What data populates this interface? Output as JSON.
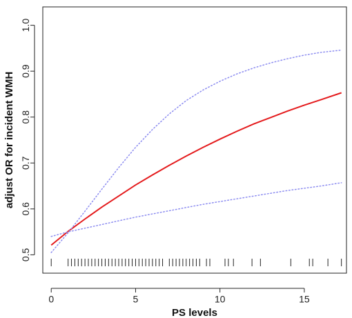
{
  "chart_data": {
    "type": "line",
    "xlabel": "PS levels",
    "ylabel": "adjust OR for incident WMH",
    "xlim": [
      -0.5,
      17.5
    ],
    "ylim": [
      0.46,
      1.04
    ],
    "x_ticks": [
      0,
      5,
      10,
      15
    ],
    "y_ticks": [
      0.5,
      0.6,
      0.7,
      0.8,
      0.9,
      1.0
    ],
    "x_tick_labels": [
      "0",
      "5",
      "10",
      "15"
    ],
    "y_tick_labels": [
      "0.5",
      "0.6",
      "0.7",
      "0.8",
      "0.9",
      "1.0"
    ],
    "grid": false,
    "series": [
      {
        "role": "estimate",
        "color": "#e41a1c",
        "style": "solid",
        "x": [
          0,
          1,
          2,
          3,
          4,
          5,
          6,
          7,
          8,
          9,
          10,
          11,
          12,
          13,
          14,
          15,
          16,
          17.2
        ],
        "y": [
          0.521,
          0.551,
          0.578,
          0.604,
          0.628,
          0.652,
          0.674,
          0.695,
          0.715,
          0.734,
          0.752,
          0.769,
          0.785,
          0.799,
          0.813,
          0.826,
          0.838,
          0.853
        ]
      },
      {
        "role": "upper_ci",
        "color": "#8c8cf0",
        "style": "dotted",
        "x": [
          0,
          1,
          2,
          3,
          4,
          5,
          6,
          7,
          8,
          9,
          10,
          11,
          12,
          13,
          14,
          15,
          16,
          17.2
        ],
        "y": [
          0.505,
          0.548,
          0.595,
          0.643,
          0.69,
          0.734,
          0.773,
          0.807,
          0.836,
          0.859,
          0.878,
          0.894,
          0.907,
          0.918,
          0.927,
          0.935,
          0.941,
          0.946
        ]
      },
      {
        "role": "lower_ci",
        "color": "#8c8cf0",
        "style": "dotted",
        "x": [
          0,
          1,
          2,
          3,
          4,
          5,
          6,
          7,
          8,
          9,
          10,
          11,
          12,
          13,
          14,
          15,
          16,
          17.2
        ],
        "y": [
          0.54,
          0.55,
          0.558,
          0.566,
          0.574,
          0.582,
          0.589,
          0.596,
          0.603,
          0.61,
          0.616,
          0.622,
          0.628,
          0.634,
          0.64,
          0.645,
          0.65,
          0.657
        ]
      }
    ],
    "rug": [
      0,
      1,
      1.2,
      1.4,
      1.6,
      1.8,
      2,
      2.2,
      2.4,
      2.6,
      2.8,
      3,
      3.2,
      3.4,
      3.6,
      3.8,
      4,
      4.2,
      4.4,
      4.6,
      4.8,
      5,
      5.2,
      5.4,
      5.6,
      5.8,
      6,
      6.2,
      6.4,
      6.6,
      7,
      7.2,
      7.4,
      7.6,
      7.8,
      8,
      8.2,
      8.4,
      8.6,
      8.8,
      9.2,
      9.4,
      10.3,
      10.5,
      10.8,
      11.9,
      12.4,
      14.2,
      15.3,
      15.5,
      16.4,
      17.2
    ]
  }
}
